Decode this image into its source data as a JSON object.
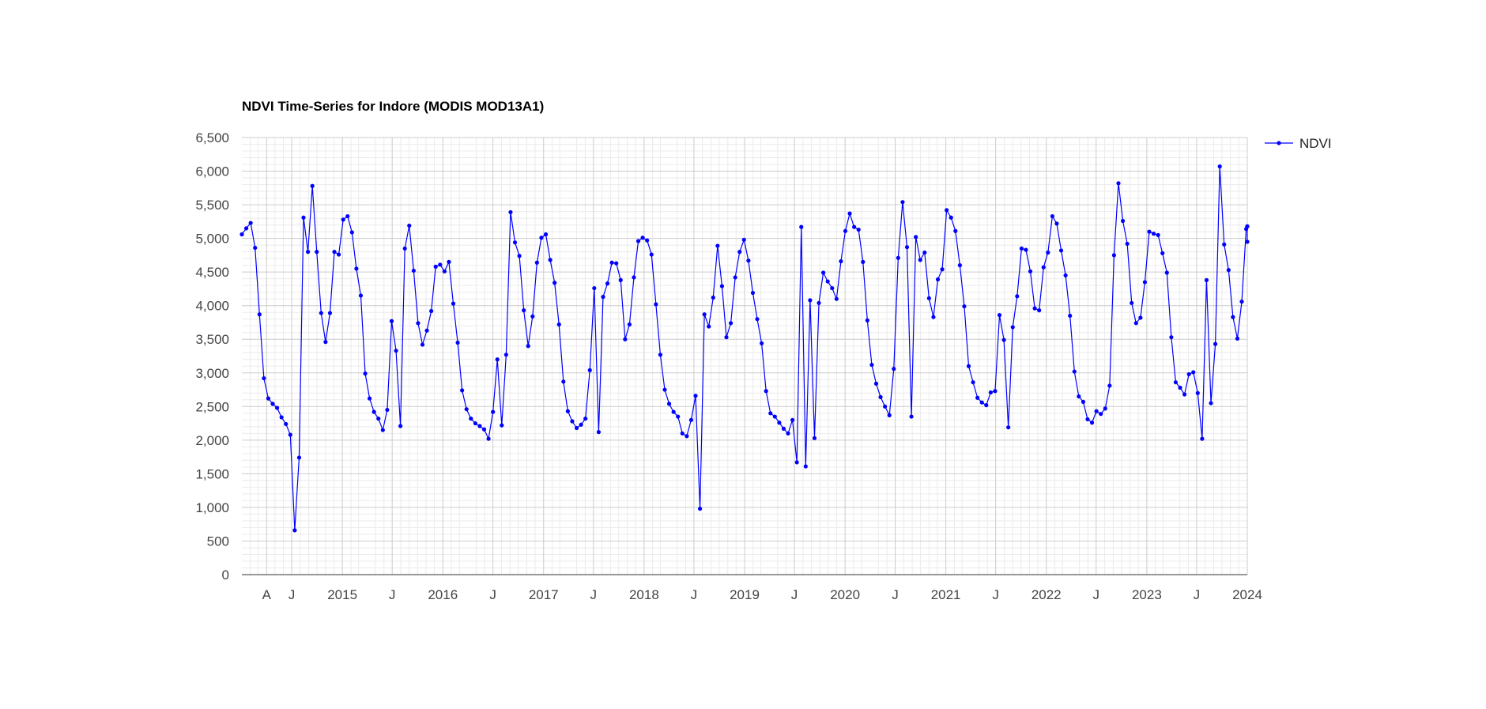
{
  "chart_data": {
    "type": "line",
    "title": "NDVI Time-Series for Indore (MODIS MOD13A1)",
    "xlabel": "",
    "ylabel": "",
    "ylim": [
      0,
      6500
    ],
    "xlim": [
      "2014-01-01",
      "2024-01-01"
    ],
    "ytick_labels": [
      {
        "value": 0,
        "label": "0"
      },
      {
        "value": 500,
        "label": "500"
      },
      {
        "value": 1000,
        "label": "1,000"
      },
      {
        "value": 1500,
        "label": "1,500"
      },
      {
        "value": 2000,
        "label": "2,000"
      },
      {
        "value": 2500,
        "label": "2,500"
      },
      {
        "value": 3000,
        "label": "3,000"
      },
      {
        "value": 3500,
        "label": "3,500"
      },
      {
        "value": 4000,
        "label": "4,000"
      },
      {
        "value": 4500,
        "label": "4,500"
      },
      {
        "value": 5000,
        "label": "5,000"
      },
      {
        "value": 5500,
        "label": "5,500"
      },
      {
        "value": 6000,
        "label": "6,000"
      },
      {
        "value": 6500,
        "label": "6,500"
      }
    ],
    "xtick_labels": [
      {
        "date": "2014-04-01",
        "label": "A"
      },
      {
        "date": "2014-07-01",
        "label": "J"
      },
      {
        "date": "2015-01-01",
        "label": "2015"
      },
      {
        "date": "2015-07-01",
        "label": "J"
      },
      {
        "date": "2016-01-01",
        "label": "2016"
      },
      {
        "date": "2016-07-01",
        "label": "J"
      },
      {
        "date": "2017-01-01",
        "label": "2017"
      },
      {
        "date": "2017-07-01",
        "label": "J"
      },
      {
        "date": "2018-01-01",
        "label": "2018"
      },
      {
        "date": "2018-07-01",
        "label": "J"
      },
      {
        "date": "2019-01-01",
        "label": "2019"
      },
      {
        "date": "2019-07-01",
        "label": "J"
      },
      {
        "date": "2020-01-01",
        "label": "2020"
      },
      {
        "date": "2020-07-01",
        "label": "J"
      },
      {
        "date": "2021-01-01",
        "label": "2021"
      },
      {
        "date": "2021-07-01",
        "label": "J"
      },
      {
        "date": "2022-01-01",
        "label": "2022"
      },
      {
        "date": "2022-07-01",
        "label": "J"
      },
      {
        "date": "2023-01-01",
        "label": "2023"
      },
      {
        "date": "2023-07-01",
        "label": "J"
      },
      {
        "date": "2024-01-01",
        "label": "2024"
      }
    ],
    "grid": true,
    "legend_position": "right",
    "series": [
      {
        "name": "NDVI",
        "color": "#0000ff",
        "marker": "circle",
        "values": [
          5060,
          5150,
          5230,
          4860,
          3870,
          2920,
          2620,
          2540,
          2480,
          2340,
          2240,
          2080,
          660,
          1740,
          5310,
          4800,
          5780,
          4800,
          3890,
          3460,
          3890,
          4800,
          4760,
          5280,
          5330,
          5090,
          4550,
          4150,
          2990,
          2620,
          2420,
          2320,
          2150,
          2450,
          3770,
          3330,
          2210,
          4850,
          5190,
          4520,
          3740,
          3420,
          3630,
          3920,
          4580,
          4610,
          4510,
          4650,
          4030,
          3450,
          2740,
          2460,
          2320,
          2250,
          2210,
          2160,
          2020,
          2420,
          3200,
          2220,
          3270,
          5390,
          4940,
          4740,
          3930,
          3400,
          3840,
          4640,
          5010,
          5060,
          4680,
          4340,
          3720,
          2870,
          2430,
          2280,
          2180,
          2230,
          2320,
          3040,
          4260,
          2120,
          4130,
          4330,
          4640,
          4630,
          4380,
          3500,
          3720,
          4420,
          4960,
          5010,
          4970,
          4760,
          4020,
          3270,
          2750,
          2540,
          2420,
          2350,
          2100,
          2060,
          2300,
          2660,
          980,
          3870,
          3690,
          4120,
          4890,
          4290,
          3530,
          3740,
          4420,
          4800,
          4980,
          4670,
          4190,
          3800,
          3440,
          2730,
          2400,
          2350,
          2260,
          2170,
          2100,
          2300,
          1670,
          5170,
          1610,
          4080,
          2030,
          4040,
          4490,
          4360,
          4260,
          4100,
          4660,
          5110,
          5370,
          5170,
          5130,
          4650,
          3780,
          3120,
          2840,
          2640,
          2500,
          2370,
          3060,
          4710,
          5540,
          4870,
          2350,
          5020,
          4680,
          4790,
          4110,
          3830,
          4390,
          4540,
          5420,
          5310,
          5110,
          4600,
          3990,
          3100,
          2860,
          2630,
          2560,
          2520,
          2710,
          2730,
          3860,
          3490,
          2190,
          3680,
          4140,
          4850,
          4830,
          4510,
          3960,
          3930,
          4570,
          4790,
          5330,
          5220,
          4820,
          4450,
          3850,
          3020,
          2650,
          2570,
          2310,
          2260,
          2430,
          2390,
          2470,
          2810,
          4750,
          5820,
          5260,
          4920,
          4040,
          3740,
          3820,
          4350,
          5100,
          5070,
          5050,
          4780,
          4490,
          3530,
          2860,
          2780,
          2680,
          2980,
          3010,
          2700,
          2020,
          4380,
          2550,
          3430,
          6070,
          4910,
          4530,
          3830,
          3510,
          4060,
          5140,
          5180,
          5180,
          4950
        ]
      }
    ]
  }
}
